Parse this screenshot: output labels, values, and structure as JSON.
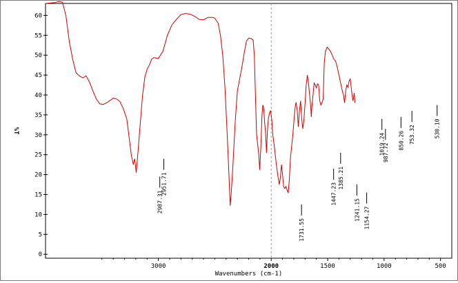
{
  "chart_data": {
    "type": "line",
    "title": "",
    "xlabel": "Wavenumbers (cm-1)",
    "ylabel": "%T",
    "xlim": [
      4000,
      400
    ],
    "ylim": [
      -1,
      63
    ],
    "x_reversed": true,
    "xticks": [
      3000,
      2000,
      1500,
      1000,
      500
    ],
    "yticks": [
      0,
      5,
      10,
      15,
      20,
      25,
      30,
      35,
      40,
      45,
      50,
      55,
      60
    ],
    "grid": false,
    "marker_line_x": 2000,
    "line_color": "#cc0000",
    "series": [
      {
        "values": [
          [
            4000,
            63.0
          ],
          [
            3920,
            63.2
          ],
          [
            3880,
            63.5
          ],
          [
            3850,
            63.3
          ],
          [
            3820,
            60.0
          ],
          [
            3790,
            53.5
          ],
          [
            3760,
            49.0
          ],
          [
            3730,
            45.6
          ],
          [
            3700,
            44.8
          ],
          [
            3670,
            44.3
          ],
          [
            3640,
            44.8
          ],
          [
            3610,
            43.2
          ],
          [
            3580,
            41.0
          ],
          [
            3550,
            39.0
          ],
          [
            3520,
            37.8
          ],
          [
            3490,
            37.6
          ],
          [
            3460,
            38.0
          ],
          [
            3430,
            38.6
          ],
          [
            3400,
            39.2
          ],
          [
            3370,
            39.0
          ],
          [
            3340,
            38.3
          ],
          [
            3310,
            36.5
          ],
          [
            3280,
            34.0
          ],
          [
            3260,
            29.5
          ],
          [
            3240,
            25.0
          ],
          [
            3222,
            22.5
          ],
          [
            3210,
            24.0
          ],
          [
            3196,
            20.5
          ],
          [
            3180,
            26.0
          ],
          [
            3160,
            33.0
          ],
          [
            3140,
            40.0
          ],
          [
            3120,
            44.5
          ],
          [
            3100,
            46.5
          ],
          [
            3080,
            47.5
          ],
          [
            3060,
            49.0
          ],
          [
            3040,
            49.4
          ],
          [
            3000,
            49.2
          ],
          [
            2960,
            51.0
          ],
          [
            2920,
            55.0
          ],
          [
            2880,
            57.6
          ],
          [
            2840,
            59.0
          ],
          [
            2800,
            60.2
          ],
          [
            2760,
            60.5
          ],
          [
            2720,
            60.3
          ],
          [
            2680,
            59.8
          ],
          [
            2640,
            59.0
          ],
          [
            2600,
            58.9
          ],
          [
            2560,
            59.5
          ],
          [
            2520,
            59.5
          ],
          [
            2500,
            59.3
          ],
          [
            2470,
            58.0
          ],
          [
            2450,
            55.0
          ],
          [
            2430,
            50.0
          ],
          [
            2410,
            42.0
          ],
          [
            2390,
            30.0
          ],
          [
            2375,
            20.0
          ],
          [
            2364,
            12.2
          ],
          [
            2355,
            15.0
          ],
          [
            2340,
            22.0
          ],
          [
            2320,
            33.0
          ],
          [
            2300,
            41.0
          ],
          [
            2280,
            44.0
          ],
          [
            2260,
            47.0
          ],
          [
            2240,
            50.5
          ],
          [
            2220,
            53.5
          ],
          [
            2200,
            54.3
          ],
          [
            2180,
            54.2
          ],
          [
            2160,
            53.8
          ],
          [
            2150,
            50.0
          ],
          [
            2140,
            40.0
          ],
          [
            2130,
            30.0
          ],
          [
            2120,
            27.5
          ],
          [
            2110,
            25.0
          ],
          [
            2102,
            21.2
          ],
          [
            2092,
            27.0
          ],
          [
            2082,
            35.0
          ],
          [
            2074,
            37.5
          ],
          [
            2066,
            36.5
          ],
          [
            2058,
            33.0
          ],
          [
            2050,
            30.5
          ],
          [
            2042,
            25.5
          ],
          [
            2034,
            31.0
          ],
          [
            2026,
            34.0
          ],
          [
            2016,
            35.5
          ],
          [
            2006,
            36.0
          ],
          [
            1996,
            34.0
          ],
          [
            1986,
            30.0
          ],
          [
            1970,
            26.5
          ],
          [
            1955,
            22.5
          ],
          [
            1940,
            19.5
          ],
          [
            1928,
            17.5
          ],
          [
            1918,
            19.5
          ],
          [
            1909,
            22.5
          ],
          [
            1900,
            20.0
          ],
          [
            1890,
            17.0
          ],
          [
            1880,
            16.5
          ],
          [
            1870,
            17.0
          ],
          [
            1860,
            16.2
          ],
          [
            1850,
            15.4
          ],
          [
            1840,
            18.5
          ],
          [
            1830,
            24.0
          ],
          [
            1820,
            27.0
          ],
          [
            1810,
            29.5
          ],
          [
            1800,
            33.0
          ],
          [
            1790,
            36.5
          ],
          [
            1780,
            38.2
          ],
          [
            1770,
            36.0
          ],
          [
            1760,
            32.0
          ],
          [
            1750,
            36.0
          ],
          [
            1740,
            38.5
          ],
          [
            1730,
            34.0
          ],
          [
            1720,
            31.5
          ],
          [
            1710,
            34.0
          ],
          [
            1700,
            38.0
          ],
          [
            1690,
            42.5
          ],
          [
            1680,
            45.0
          ],
          [
            1670,
            43.0
          ],
          [
            1660,
            40.0
          ],
          [
            1650,
            37.0
          ],
          [
            1645,
            34.5
          ],
          [
            1640,
            37.0
          ],
          [
            1630,
            40.0
          ],
          [
            1620,
            43.0
          ],
          [
            1610,
            42.5
          ],
          [
            1600,
            41.8
          ],
          [
            1590,
            42.8
          ],
          [
            1580,
            42.5
          ],
          [
            1570,
            38.5
          ],
          [
            1560,
            37.5
          ],
          [
            1550,
            38.0
          ],
          [
            1540,
            39.0
          ],
          [
            1530,
            48.0
          ],
          [
            1520,
            51.0
          ],
          [
            1505,
            52.0
          ],
          [
            1490,
            51.5
          ],
          [
            1475,
            51.0
          ],
          [
            1460,
            50.0
          ],
          [
            1445,
            49.0
          ],
          [
            1430,
            48.5
          ],
          [
            1415,
            47.0
          ],
          [
            1400,
            45.0
          ],
          [
            1385,
            43.0
          ],
          [
            1370,
            41.0
          ],
          [
            1360,
            40.0
          ],
          [
            1350,
            38.0
          ],
          [
            1340,
            41.0
          ],
          [
            1330,
            42.5
          ],
          [
            1320,
            42.0
          ],
          [
            1310,
            43.5
          ],
          [
            1300,
            44.0
          ],
          [
            1292,
            42.0
          ],
          [
            1284,
            40.0
          ],
          [
            1276,
            38.5
          ],
          [
            1270,
            39.5
          ],
          [
            1264,
            40.5
          ],
          [
            1258,
            38.0
          ]
        ]
      }
    ],
    "peak_labels": [
      {
        "label": "2987.31",
        "x": 2987.31,
        "y": 19.5
      },
      {
        "label": "2951.71",
        "x": 2951.71,
        "y": 24.0
      },
      {
        "label": "1731.55",
        "x": 1731.55,
        "y": 12.5
      },
      {
        "label": "1447.23",
        "x": 1447.23,
        "y": 21.5
      },
      {
        "label": "1385.21",
        "x": 1385.21,
        "y": 25.5
      },
      {
        "label": "1241.15",
        "x": 1241.15,
        "y": 17.5
      },
      {
        "label": "1154.27",
        "x": 1154.27,
        "y": 15.5
      },
      {
        "label": "1019.24",
        "x": 1019.24,
        "y": 34.0
      },
      {
        "label": "987.72",
        "x": 987.72,
        "y": 31.5
      },
      {
        "label": "850.26",
        "x": 850.26,
        "y": 34.5
      },
      {
        "label": "753.32",
        "x": 753.32,
        "y": 36.0
      },
      {
        "label": "530.10",
        "x": 530.1,
        "y": 37.5
      }
    ]
  }
}
